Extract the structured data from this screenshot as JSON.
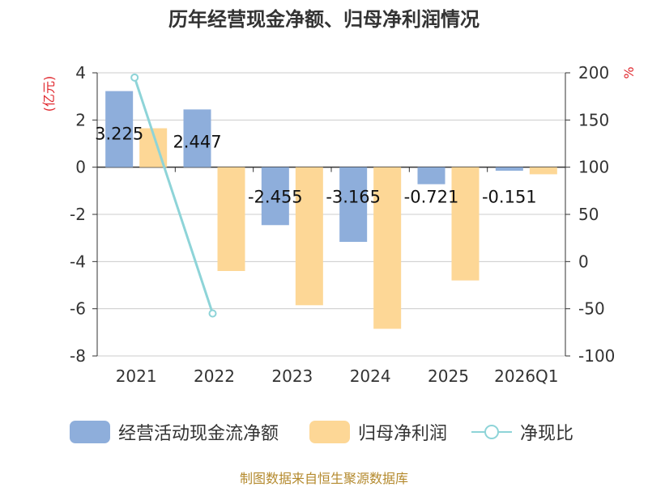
{
  "title": "历年经营现金净额、归母净利润情况",
  "footer": "制图数据来自恒生聚源数据库",
  "colors": {
    "ocf": "#8eaedb",
    "profit": "#fdd796",
    "ratio": "#8ed4d8",
    "axis_unit": "#e0282e",
    "footer": "#b48a2e",
    "grid": "#cccccc",
    "text": "#333333"
  },
  "legend": {
    "ocf": "经营活动现金流净额",
    "profit": "归母净利润",
    "ratio": "净现比"
  },
  "chart_data": {
    "type": "bar",
    "title": "历年经营现金净额、归母净利润情况",
    "categories": [
      "2021",
      "2022",
      "2023",
      "2024",
      "2025",
      "2026Q1"
    ],
    "y_left": {
      "label": "(亿元)",
      "ticks": [
        4,
        2,
        0,
        -2,
        -4,
        -6,
        -8
      ],
      "ylim": [
        -8,
        4
      ]
    },
    "y_right": {
      "label": "%",
      "ticks": [
        200,
        150,
        100,
        50,
        0,
        -50,
        -100
      ],
      "ylim": [
        -100,
        200
      ]
    },
    "series": [
      {
        "name": "经营活动现金流净额",
        "type": "bar",
        "axis": "left",
        "values": [
          3.225,
          2.447,
          -2.455,
          -3.165,
          -0.721,
          -0.151
        ],
        "labels": [
          "3.225",
          "2.447",
          "-2.455",
          "-3.165",
          "-0.721",
          "-0.151"
        ]
      },
      {
        "name": "归母净利润",
        "type": "bar",
        "axis": "left",
        "values": [
          1.65,
          -4.4,
          -5.85,
          -6.85,
          -4.8,
          -0.3
        ]
      },
      {
        "name": "净现比",
        "type": "line",
        "axis": "right",
        "values": [
          195,
          -55,
          null,
          null,
          null,
          null
        ]
      }
    ],
    "grid": true,
    "legend_position": "bottom"
  }
}
